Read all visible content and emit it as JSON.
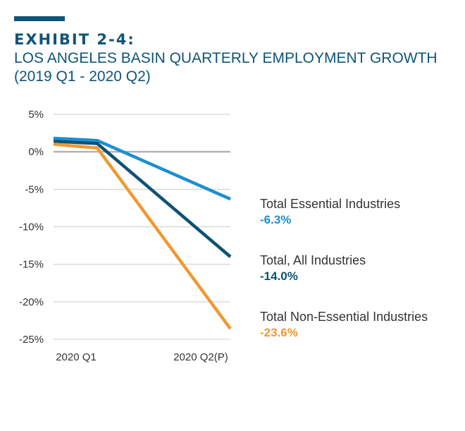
{
  "header": {
    "title": "EXHIBIT 2-4:",
    "subtitle": "LOS ANGELES BASIN QUARTERLY EMPLOYMENT GROWTH (2019 Q1 - 2020 Q2)"
  },
  "colors": {
    "accent": "#0f5478",
    "title": "#0f5478",
    "grid": "#cccccc",
    "zero_line": "#b3b3b3"
  },
  "chart_data": {
    "type": "line",
    "title": "EXHIBIT 2-4: LOS ANGELES BASIN QUARTERLY EMPLOYMENT GROWTH (2019 Q1 - 2020 Q2)",
    "xlabel": "",
    "ylabel": "",
    "x": [
      "2020 Q1",
      "2020 Q1",
      "2020 Q2(P)"
    ],
    "x_tick_labels": [
      "2020 Q1",
      "2020 Q2(P)"
    ],
    "y_tick_labels": [
      "5%",
      "0%",
      "-5%",
      "-10%",
      "-15%",
      "-20%",
      "-25%"
    ],
    "ylim": [
      -25,
      5
    ],
    "unit": "%",
    "grid": true,
    "series": [
      {
        "name": "Total Essential Industries",
        "color": "#1c8fcf",
        "values": [
          1.8,
          1.5,
          -6.3
        ],
        "end_label": "-6.3%"
      },
      {
        "name": "Total, All Industries",
        "color": "#0e5273",
        "values": [
          1.4,
          1.1,
          -14.0
        ],
        "end_label": "-14.0%"
      },
      {
        "name": "Total Non-Essential Industries",
        "color": "#ef9933",
        "values": [
          1.0,
          0.5,
          -23.6
        ],
        "end_label": "-23.6%"
      }
    ]
  }
}
